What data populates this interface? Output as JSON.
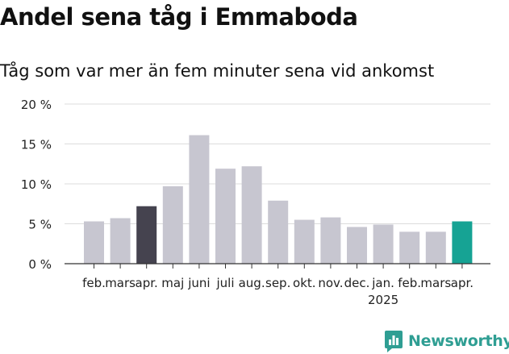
{
  "chart_data": {
    "type": "bar",
    "title": "Andel sena tåg i Emmaboda",
    "subtitle": "Tåg som var mer än fem minuter sena vid ankomst",
    "categories": [
      "feb.",
      "mars",
      "apr.",
      "maj",
      "juni",
      "juli",
      "aug.",
      "sep.",
      "okt.",
      "nov.",
      "dec.",
      "jan.",
      "feb.",
      "mars",
      "apr."
    ],
    "year_label": "2025",
    "values": [
      5.3,
      5.7,
      7.2,
      9.7,
      16.1,
      11.9,
      12.2,
      7.9,
      5.5,
      5.8,
      4.6,
      4.9,
      4.0,
      4.0,
      5.3
    ],
    "highlight": {
      "2": "#45434f",
      "14": "#16a394"
    },
    "bar_color": "#c7c6d0",
    "ylim": [
      0,
      20
    ],
    "yticks": [
      0,
      5,
      10,
      15,
      20
    ],
    "ytick_labels": [
      "0 %",
      "5 %",
      "10 %",
      "15 %",
      "20 %"
    ],
    "grid": true,
    "xlabel": "",
    "ylabel": ""
  },
  "branding": {
    "logo_text": "Newsworthy",
    "logo_icon": "bar-chart-logo-icon",
    "logo_color": "#2f9e93"
  }
}
